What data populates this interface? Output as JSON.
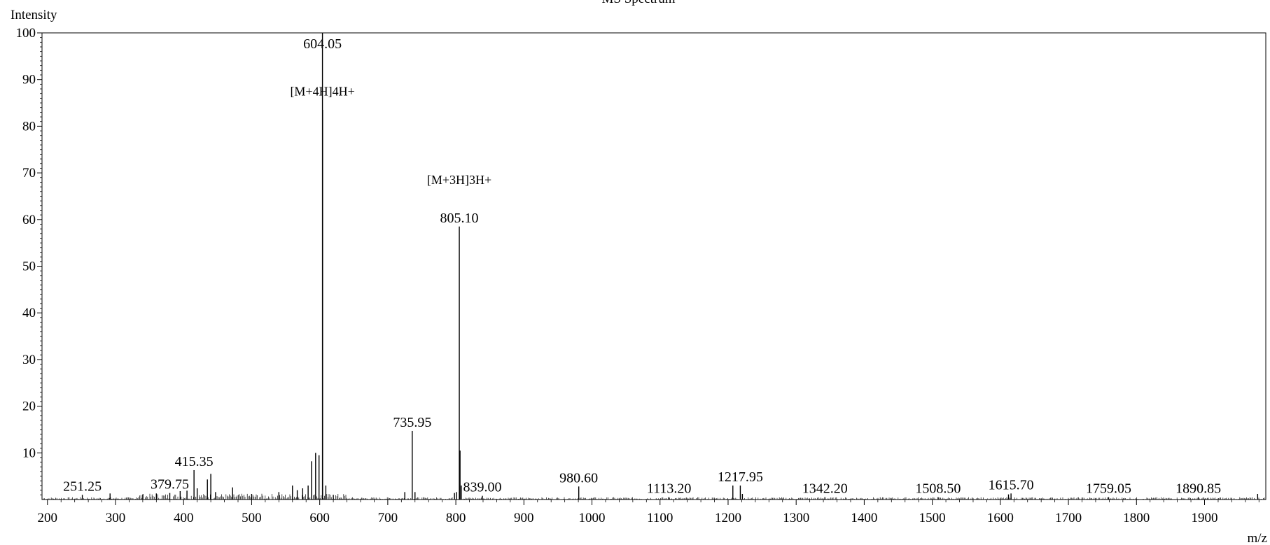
{
  "chart_data": {
    "type": "bar",
    "title": "MS Spectrum",
    "xlabel": "m/z",
    "ylabel": "Intensity",
    "xlim": [
      192,
      1990
    ],
    "ylim": [
      0,
      100
    ],
    "x_ticks": [
      200,
      300,
      400,
      500,
      600,
      700,
      800,
      900,
      1000,
      1100,
      1200,
      1300,
      1400,
      1500,
      1600,
      1700,
      1800,
      1900
    ],
    "x_tick_labels": [
      "200",
      "300",
      "400",
      "500",
      "600",
      "700",
      "800",
      "900",
      "1000",
      "1100",
      "1200",
      "1300",
      "1400",
      "1500",
      "1600",
      "1700",
      "1800",
      "1900"
    ],
    "y_ticks": [
      10,
      20,
      30,
      40,
      50,
      60,
      70,
      80,
      90,
      100
    ],
    "y_tick_labels": [
      "10",
      "20",
      "30",
      "40",
      "50",
      "60",
      "70",
      "80",
      "90",
      "100"
    ],
    "grid": false,
    "peaks": [
      {
        "mz": 251.25,
        "intensity": 1.0
      },
      {
        "mz": 292,
        "intensity": 1.3
      },
      {
        "mz": 340,
        "intensity": 1.1
      },
      {
        "mz": 360,
        "intensity": 1.3
      },
      {
        "mz": 379.75,
        "intensity": 1.4
      },
      {
        "mz": 395,
        "intensity": 1.8
      },
      {
        "mz": 405,
        "intensity": 1.9
      },
      {
        "mz": 415.35,
        "intensity": 6.3
      },
      {
        "mz": 420,
        "intensity": 2.4
      },
      {
        "mz": 435,
        "intensity": 4.3
      },
      {
        "mz": 440,
        "intensity": 5.5
      },
      {
        "mz": 447,
        "intensity": 1.6
      },
      {
        "mz": 472,
        "intensity": 2.6
      },
      {
        "mz": 500,
        "intensity": 1.2
      },
      {
        "mz": 540,
        "intensity": 1.6
      },
      {
        "mz": 560,
        "intensity": 3.0
      },
      {
        "mz": 567,
        "intensity": 2.0
      },
      {
        "mz": 575,
        "intensity": 2.4
      },
      {
        "mz": 583,
        "intensity": 3.0
      },
      {
        "mz": 588,
        "intensity": 8.2
      },
      {
        "mz": 594,
        "intensity": 10.0
      },
      {
        "mz": 599,
        "intensity": 9.5
      },
      {
        "mz": 604.05,
        "intensity": 100
      },
      {
        "mz": 604.3,
        "intensity": 83.5
      },
      {
        "mz": 609,
        "intensity": 3.0
      },
      {
        "mz": 620,
        "intensity": 1.0
      },
      {
        "mz": 725,
        "intensity": 1.6
      },
      {
        "mz": 735.95,
        "intensity": 14.7
      },
      {
        "mz": 740,
        "intensity": 1.6
      },
      {
        "mz": 798,
        "intensity": 1.4
      },
      {
        "mz": 801,
        "intensity": 1.6
      },
      {
        "mz": 805.1,
        "intensity": 58.5
      },
      {
        "mz": 806.2,
        "intensity": 10.5
      },
      {
        "mz": 808,
        "intensity": 3.0
      },
      {
        "mz": 839.0,
        "intensity": 0.8
      },
      {
        "mz": 980.6,
        "intensity": 2.8
      },
      {
        "mz": 1113.2,
        "intensity": 0.5
      },
      {
        "mz": 1207,
        "intensity": 3.0
      },
      {
        "mz": 1217.95,
        "intensity": 3.0
      },
      {
        "mz": 1221,
        "intensity": 1.2
      },
      {
        "mz": 1342.2,
        "intensity": 0.5
      },
      {
        "mz": 1508.5,
        "intensity": 0.5
      },
      {
        "mz": 1612,
        "intensity": 1.1
      },
      {
        "mz": 1615.7,
        "intensity": 1.3
      },
      {
        "mz": 1759.05,
        "intensity": 0.5
      },
      {
        "mz": 1890.85,
        "intensity": 0.5
      },
      {
        "mz": 1978,
        "intensity": 1.2
      }
    ],
    "peak_labels": [
      {
        "mz": 251.25,
        "text": "251.25"
      },
      {
        "mz": 379.75,
        "text": "379.75"
      },
      {
        "mz": 415.35,
        "text": "415.35"
      },
      {
        "mz": 604.05,
        "text": "604.05"
      },
      {
        "mz": 735.95,
        "text": "735.95"
      },
      {
        "mz": 805.1,
        "text": "805.10"
      },
      {
        "mz": 839.0,
        "text": "839.00"
      },
      {
        "mz": 980.6,
        "text": "980.60"
      },
      {
        "mz": 1113.2,
        "text": "1113.20"
      },
      {
        "mz": 1217.95,
        "text": "1217.95"
      },
      {
        "mz": 1342.2,
        "text": "1342.20"
      },
      {
        "mz": 1508.5,
        "text": "1508.50"
      },
      {
        "mz": 1615.7,
        "text": "1615.70"
      },
      {
        "mz": 1759.05,
        "text": "1759.05"
      },
      {
        "mz": 1890.85,
        "text": "1890.85"
      }
    ],
    "annotations": [
      {
        "mz": 604.05,
        "text": "[M+4H]4H+",
        "intensity": 87.5
      },
      {
        "mz": 805.1,
        "text": "[M+3H]3H+",
        "intensity": 68.5
      }
    ]
  }
}
